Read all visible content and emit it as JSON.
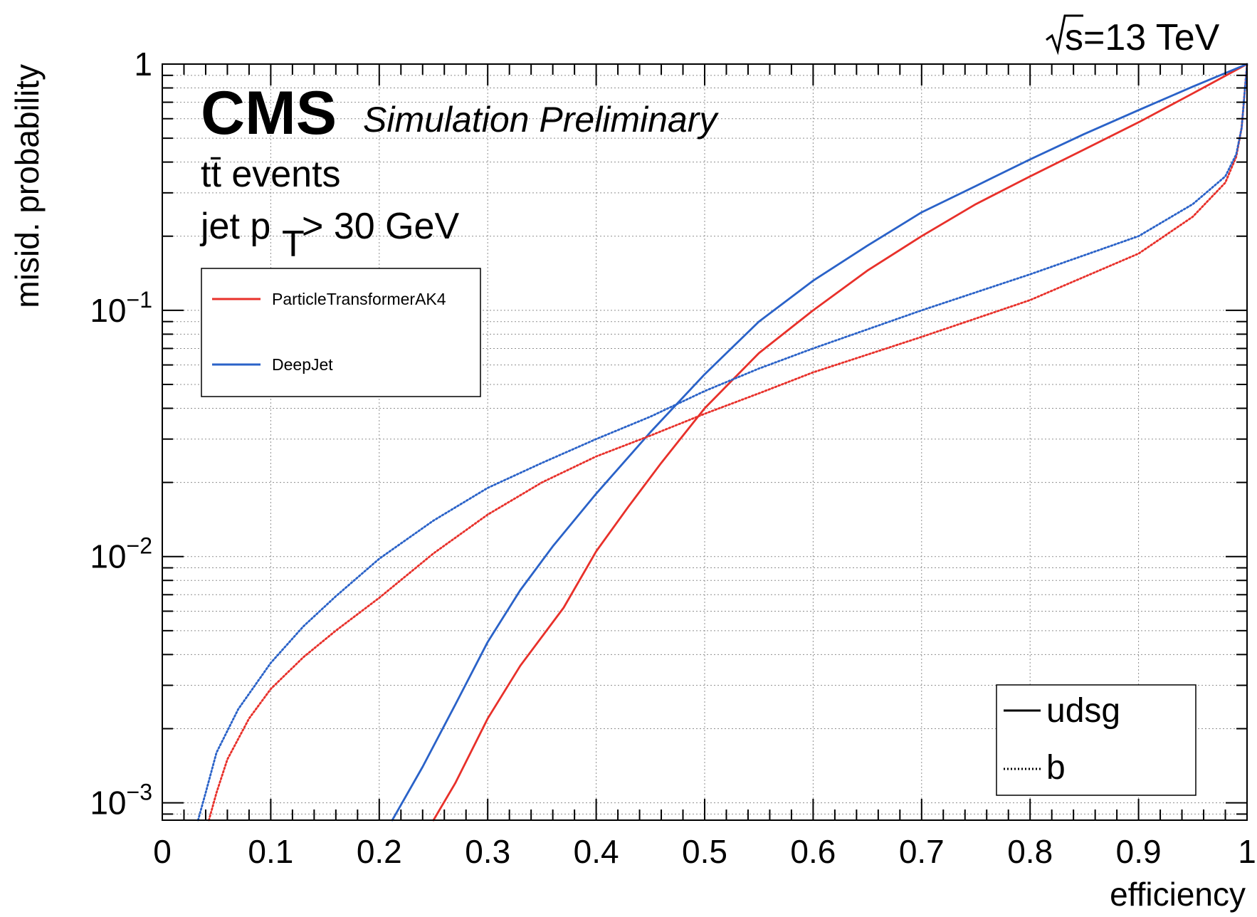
{
  "chart_data": {
    "type": "line",
    "title": "",
    "energy_label": "=13 TeV",
    "xlabel": "efficiency",
    "ylabel": "misid. probability",
    "yscale": "log",
    "xlim": [
      0,
      1
    ],
    "ylim": [
      0.00085,
      1
    ],
    "x_ticks": [
      {
        "value": 0,
        "label": "0"
      },
      {
        "value": 0.1,
        "label": "0.1"
      },
      {
        "value": 0.2,
        "label": "0.2"
      },
      {
        "value": 0.3,
        "label": "0.3"
      },
      {
        "value": 0.4,
        "label": "0.4"
      },
      {
        "value": 0.5,
        "label": "0.5"
      },
      {
        "value": 0.6,
        "label": "0.6"
      },
      {
        "value": 0.7,
        "label": "0.7"
      },
      {
        "value": 0.8,
        "label": "0.8"
      },
      {
        "value": 0.9,
        "label": "0.9"
      },
      {
        "value": 1,
        "label": "1"
      }
    ],
    "y_ticks": [
      {
        "value": 0.001,
        "base": "10",
        "exp": "−3"
      },
      {
        "value": 0.01,
        "base": "10",
        "exp": "−2"
      },
      {
        "value": 0.1,
        "base": "10",
        "exp": "−1"
      },
      {
        "value": 1,
        "base": "1",
        "exp": ""
      }
    ],
    "grid": true,
    "experiment": "CMS",
    "experiment_sub": "Simulation Preliminary",
    "annotations": [
      "tt̄ events",
      "jet p",
      "T",
      " > 30 GeV"
    ],
    "legend_algos": {
      "position": "top-left",
      "entries": [
        {
          "label": "ParticleTransformerAK4",
          "color": "#e8302a"
        },
        {
          "label": "DeepJet",
          "color": "#2a62c8"
        }
      ]
    },
    "legend_styles": {
      "position": "bottom-right",
      "entries": [
        {
          "label": "udsg",
          "style": "solid"
        },
        {
          "label": "b",
          "style": "dotted"
        }
      ]
    },
    "series": [
      {
        "name": "ParticleTransformerAK4 udsg",
        "color": "#e8302a",
        "style": "solid",
        "x": [
          0.25,
          0.27,
          0.3,
          0.33,
          0.37,
          0.4,
          0.43,
          0.46,
          0.5,
          0.55,
          0.6,
          0.65,
          0.7,
          0.75,
          0.8,
          0.85,
          0.9,
          0.95,
          1.0
        ],
        "y": [
          0.0008,
          0.0012,
          0.0022,
          0.0036,
          0.0062,
          0.0105,
          0.016,
          0.024,
          0.04,
          0.067,
          0.1,
          0.145,
          0.2,
          0.27,
          0.35,
          0.45,
          0.58,
          0.76,
          1.0
        ]
      },
      {
        "name": "DeepJet udsg",
        "color": "#2a62c8",
        "style": "solid",
        "x": [
          0.212,
          0.24,
          0.27,
          0.3,
          0.33,
          0.36,
          0.4,
          0.45,
          0.5,
          0.55,
          0.6,
          0.65,
          0.7,
          0.75,
          0.8,
          0.85,
          0.9,
          0.95,
          1.0
        ],
        "y": [
          0.0008,
          0.0014,
          0.0025,
          0.0045,
          0.0073,
          0.011,
          0.018,
          0.032,
          0.055,
          0.09,
          0.132,
          0.183,
          0.25,
          0.32,
          0.41,
          0.52,
          0.65,
          0.81,
          1.0
        ]
      },
      {
        "name": "ParticleTransformerAK4 b",
        "color": "#e8302a",
        "style": "dotted",
        "x": [
          0.043,
          0.05,
          0.06,
          0.08,
          0.1,
          0.13,
          0.16,
          0.2,
          0.25,
          0.3,
          0.35,
          0.4,
          0.45,
          0.5,
          0.55,
          0.6,
          0.7,
          0.8,
          0.9,
          0.95,
          0.98,
          0.99,
          0.995,
          1.0
        ],
        "y": [
          0.0008,
          0.0011,
          0.0015,
          0.0022,
          0.0029,
          0.0039,
          0.005,
          0.0068,
          0.0103,
          0.0148,
          0.02,
          0.0255,
          0.031,
          0.038,
          0.046,
          0.056,
          0.078,
          0.11,
          0.17,
          0.24,
          0.33,
          0.42,
          0.55,
          1.0
        ]
      },
      {
        "name": "DeepJet b",
        "color": "#2a62c8",
        "style": "dotted",
        "x": [
          0.033,
          0.04,
          0.05,
          0.07,
          0.1,
          0.13,
          0.16,
          0.2,
          0.25,
          0.3,
          0.35,
          0.4,
          0.45,
          0.5,
          0.55,
          0.6,
          0.7,
          0.8,
          0.9,
          0.95,
          0.98,
          0.99,
          0.995,
          1.0
        ],
        "y": [
          0.0008,
          0.0011,
          0.0016,
          0.0024,
          0.0037,
          0.0052,
          0.0069,
          0.0098,
          0.014,
          0.019,
          0.024,
          0.03,
          0.037,
          0.047,
          0.058,
          0.07,
          0.1,
          0.14,
          0.2,
          0.27,
          0.35,
          0.43,
          0.55,
          1.0
        ]
      }
    ]
  }
}
